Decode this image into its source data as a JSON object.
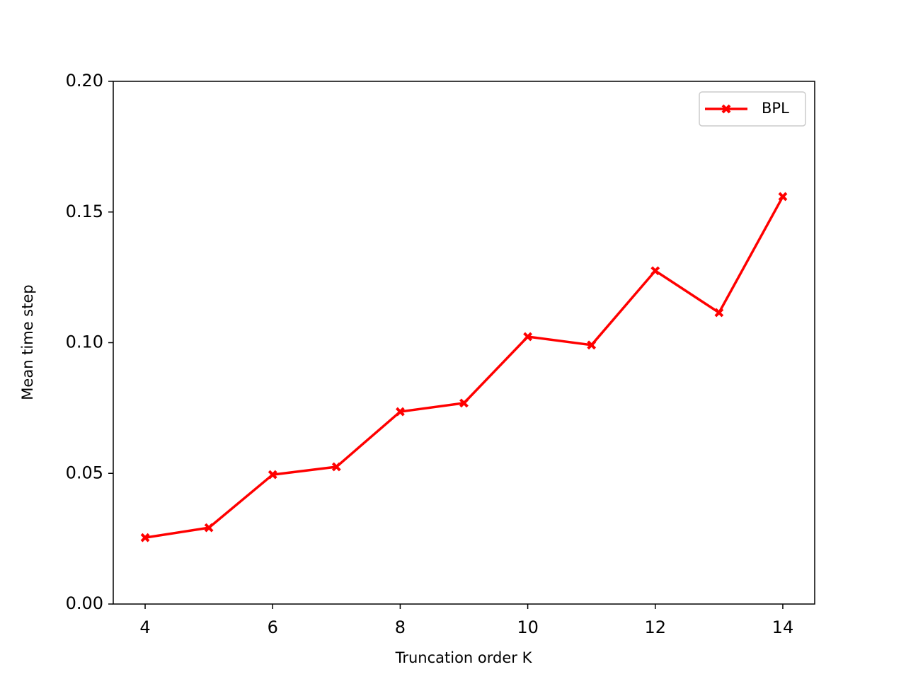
{
  "chart_data": {
    "type": "line",
    "x": [
      4,
      5,
      6,
      7,
      8,
      9,
      10,
      11,
      12,
      13,
      14
    ],
    "series": [
      {
        "name": "BPL",
        "color": "#ff0000",
        "values": [
          0.0254,
          0.0292,
          0.0495,
          0.0525,
          0.0736,
          0.0769,
          0.1023,
          0.0991,
          0.1275,
          0.1115,
          0.1559
        ]
      }
    ],
    "xlabel": "Truncation order K",
    "ylabel": "Mean time step",
    "xlim": [
      3.5,
      14.5
    ],
    "xticks": [
      4,
      6,
      8,
      10,
      12,
      14
    ],
    "ylim": [
      0,
      0.2
    ],
    "yticks": [
      {
        "value": 0,
        "label": "0.00"
      },
      {
        "value": 0.05,
        "label": "0.05"
      },
      {
        "value": 0.1,
        "label": "0.10"
      },
      {
        "value": 0.15,
        "label": "0.15"
      },
      {
        "value": 0.2,
        "label": "0.20"
      }
    ],
    "legend": "upper right",
    "grid": false
  }
}
